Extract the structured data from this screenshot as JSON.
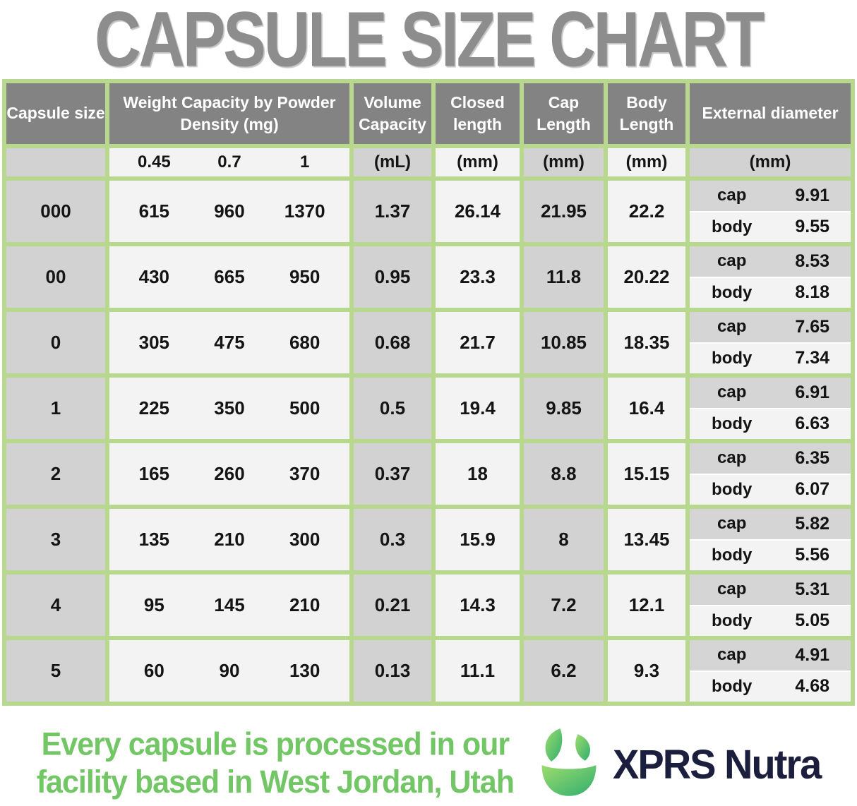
{
  "title": "CAPSULE SIZE CHART",
  "table": {
    "headers": {
      "capsule_size": "Capsule size",
      "weight_capacity": "Weight Capacity by Powder Density (mg)",
      "volume_capacity": "Volume Capacity",
      "closed_length": "Closed length",
      "cap_length": "Cap Length",
      "body_length": "Body Length",
      "external_diameter": "External diameter"
    },
    "units_row": {
      "densities": [
        "0.45",
        "0.7",
        "1"
      ],
      "volume_unit": "(mL)",
      "closed_unit": "(mm)",
      "cap_unit": "(mm)",
      "body_unit": "(mm)",
      "external_unit": "(mm)"
    },
    "cap_label": "cap",
    "body_label": "body",
    "rows": [
      {
        "size": "000",
        "weights": [
          "615",
          "960",
          "1370"
        ],
        "volume": "1.37",
        "closed": "26.14",
        "cap_len": "21.95",
        "body_len": "22.2",
        "ext_cap": "9.91",
        "ext_body": "9.55"
      },
      {
        "size": "00",
        "weights": [
          "430",
          "665",
          "950"
        ],
        "volume": "0.95",
        "closed": "23.3",
        "cap_len": "11.8",
        "body_len": "20.22",
        "ext_cap": "8.53",
        "ext_body": "8.18"
      },
      {
        "size": "0",
        "weights": [
          "305",
          "475",
          "680"
        ],
        "volume": "0.68",
        "closed": "21.7",
        "cap_len": "10.85",
        "body_len": "18.35",
        "ext_cap": "7.65",
        "ext_body": "7.34"
      },
      {
        "size": "1",
        "weights": [
          "225",
          "350",
          "500"
        ],
        "volume": "0.5",
        "closed": "19.4",
        "cap_len": "9.85",
        "body_len": "16.4",
        "ext_cap": "6.91",
        "ext_body": "6.63"
      },
      {
        "size": "2",
        "weights": [
          "165",
          "260",
          "370"
        ],
        "volume": "0.37",
        "closed": "18",
        "cap_len": "8.8",
        "body_len": "15.15",
        "ext_cap": "6.35",
        "ext_body": "6.07"
      },
      {
        "size": "3",
        "weights": [
          "135",
          "210",
          "300"
        ],
        "volume": "0.3",
        "closed": "15.9",
        "cap_len": "8",
        "body_len": "13.45",
        "ext_cap": "5.82",
        "ext_body": "5.56"
      },
      {
        "size": "4",
        "weights": [
          "95",
          "145",
          "210"
        ],
        "volume": "0.21",
        "closed": "14.3",
        "cap_len": "7.2",
        "body_len": "12.1",
        "ext_cap": "5.31",
        "ext_body": "5.05"
      },
      {
        "size": "5",
        "weights": [
          "60",
          "90",
          "130"
        ],
        "volume": "0.13",
        "closed": "11.1",
        "cap_len": "6.2",
        "body_len": "9.3",
        "ext_cap": "4.91",
        "ext_body": "4.68"
      }
    ]
  },
  "footer": {
    "tagline_line1": "Every capsule is processed in our",
    "tagline_line2": "facility based in West Jordan, Utah",
    "brand": "XPRS Nutra"
  },
  "colors": {
    "grid_green": "#b8d88e",
    "header_gray": "#838383",
    "cell_gray": "#d2d2d2",
    "cell_light": "#f3f3f3",
    "title_gray": "#8d8d8d",
    "tagline_green": "#72c665",
    "brand_navy": "#1b1f3d",
    "logo_green_light": "#9edc6e",
    "logo_green_dark": "#2fae6e"
  },
  "chart_data": {
    "type": "table",
    "title": "CAPSULE SIZE CHART",
    "columns": [
      "Capsule size",
      "Weight Capacity density 0.45 (mg)",
      "Weight Capacity density 0.7 (mg)",
      "Weight Capacity density 1 (mg)",
      "Volume Capacity (mL)",
      "Closed length (mm)",
      "Cap Length (mm)",
      "Body Length (mm)",
      "External diameter cap (mm)",
      "External diameter body (mm)"
    ],
    "rows": [
      [
        "000",
        615,
        960,
        1370,
        1.37,
        26.14,
        21.95,
        22.2,
        9.91,
        9.55
      ],
      [
        "00",
        430,
        665,
        950,
        0.95,
        23.3,
        11.8,
        20.22,
        8.53,
        8.18
      ],
      [
        "0",
        305,
        475,
        680,
        0.68,
        21.7,
        10.85,
        18.35,
        7.65,
        7.34
      ],
      [
        "1",
        225,
        350,
        500,
        0.5,
        19.4,
        9.85,
        16.4,
        6.91,
        6.63
      ],
      [
        "2",
        165,
        260,
        370,
        0.37,
        18,
        8.8,
        15.15,
        6.35,
        6.07
      ],
      [
        "3",
        135,
        210,
        300,
        0.3,
        15.9,
        8,
        13.45,
        5.82,
        5.56
      ],
      [
        "4",
        95,
        145,
        210,
        0.21,
        14.3,
        7.2,
        12.1,
        5.31,
        5.05
      ],
      [
        "5",
        60,
        90,
        130,
        0.13,
        11.1,
        6.2,
        9.3,
        4.91,
        4.68
      ]
    ]
  }
}
